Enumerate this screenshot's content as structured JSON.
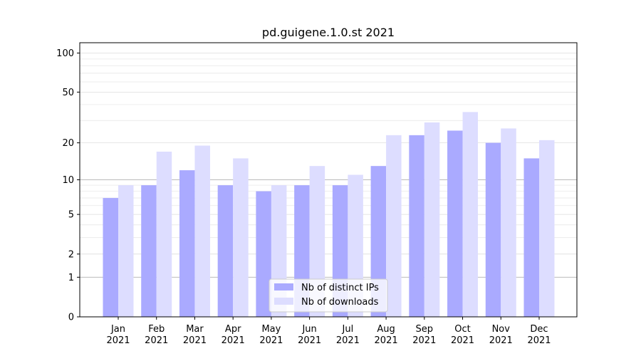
{
  "chart_data": {
    "type": "bar",
    "title": "pd.guigene.1.0.st 2021",
    "categories": [
      "Jan",
      "Feb",
      "Mar",
      "Apr",
      "May",
      "Jun",
      "Jul",
      "Aug",
      "Sep",
      "Oct",
      "Nov",
      "Dec"
    ],
    "category_sublabel": "2021",
    "series": [
      {
        "name": "Nb of distinct IPs",
        "color": "#aaaaff",
        "values": [
          7,
          9,
          12,
          9,
          8,
          9,
          9,
          13,
          23,
          25,
          20,
          15
        ]
      },
      {
        "name": "Nb of downloads",
        "color": "#ddddff",
        "values": [
          9,
          17,
          19,
          15,
          9,
          13,
          11,
          23,
          29,
          35,
          26,
          21
        ]
      }
    ],
    "yscale": "log(1 + y)",
    "ylim": [
      0,
      120
    ],
    "yticks": [
      0,
      1,
      2,
      5,
      10,
      20,
      50,
      100
    ],
    "xlabel": "",
    "ylabel": "",
    "grid": true,
    "legend_position": "bottom-center"
  }
}
